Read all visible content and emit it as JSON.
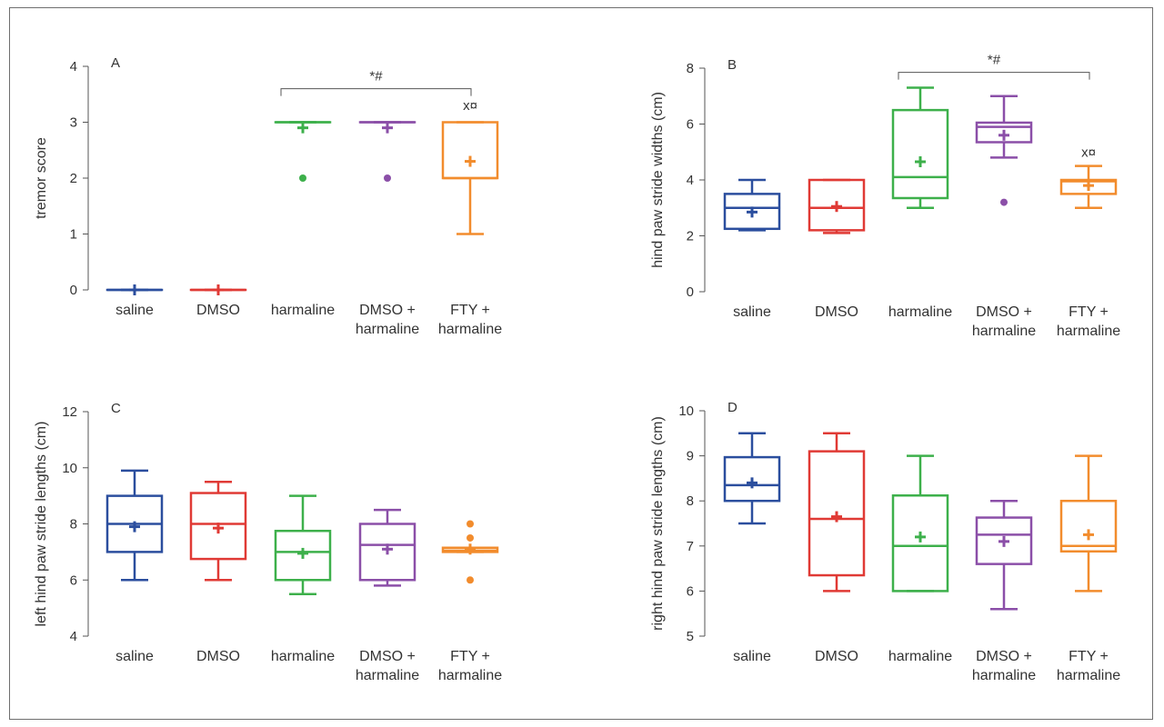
{
  "chart_data": [
    {
      "type": "box",
      "panel_label": "A",
      "ylabel": "tremor score",
      "ylim": [
        0,
        4
      ],
      "yticks": [
        "0",
        "1",
        "2",
        "3",
        "4"
      ],
      "categories": [
        [
          "saline"
        ],
        [
          "DMSO"
        ],
        [
          "harmaline"
        ],
        [
          "DMSO +",
          "harmaline"
        ],
        [
          "FTY +",
          "harmaline"
        ]
      ],
      "colors": [
        "#2b4e9e",
        "#e03a35",
        "#3db04b",
        "#8b4fa8",
        "#f28c2d"
      ],
      "boxes": [
        {
          "whisker_low": 0,
          "q1": 0,
          "median": 0,
          "q3": 0,
          "whisker_high": 0,
          "mean": 0,
          "outliers": []
        },
        {
          "whisker_low": 0,
          "q1": 0,
          "median": 0,
          "q3": 0,
          "whisker_high": 0,
          "mean": 0,
          "outliers": []
        },
        {
          "whisker_low": 3,
          "q1": 3,
          "median": 3,
          "q3": 3,
          "whisker_high": 3,
          "mean": 2.9,
          "outliers": [
            2
          ]
        },
        {
          "whisker_low": 3,
          "q1": 3,
          "median": 3,
          "q3": 3,
          "whisker_high": 3,
          "mean": 2.9,
          "outliers": [
            2
          ]
        },
        {
          "whisker_low": 1,
          "q1": 2,
          "median": 2,
          "q3": 3,
          "whisker_high": 3,
          "mean": 2.3,
          "outliers": []
        }
      ],
      "bracket": {
        "from_index": 2,
        "to_index": 4,
        "y": 3.6,
        "label": "*#"
      },
      "annotations": [
        {
          "index": 4,
          "y": 3.3,
          "text": "x¤"
        }
      ]
    },
    {
      "type": "box",
      "panel_label": "B",
      "ylabel": "hind paw stride widths (cm)",
      "ylim": [
        0,
        8
      ],
      "yticks": [
        "0",
        "2",
        "4",
        "6",
        "8"
      ],
      "categories": [
        [
          "saline"
        ],
        [
          "DMSO"
        ],
        [
          "harmaline"
        ],
        [
          "DMSO +",
          "harmaline"
        ],
        [
          "FTY +",
          "harmaline"
        ]
      ],
      "colors": [
        "#2b4e9e",
        "#e03a35",
        "#3db04b",
        "#8b4fa8",
        "#f28c2d"
      ],
      "boxes": [
        {
          "whisker_low": 2.2,
          "q1": 2.25,
          "median": 3.0,
          "q3": 3.5,
          "whisker_high": 4.0,
          "mean": 2.85,
          "outliers": []
        },
        {
          "whisker_low": 2.1,
          "q1": 2.2,
          "median": 3.0,
          "q3": 4.0,
          "whisker_high": 4.0,
          "mean": 3.05,
          "outliers": []
        },
        {
          "whisker_low": 3.0,
          "q1": 3.35,
          "median": 4.1,
          "q3": 6.5,
          "whisker_high": 7.3,
          "mean": 4.65,
          "outliers": []
        },
        {
          "whisker_low": 4.8,
          "q1": 5.35,
          "median": 5.9,
          "q3": 6.05,
          "whisker_high": 7.0,
          "mean": 5.6,
          "outliers": [
            3.2
          ]
        },
        {
          "whisker_low": 3.0,
          "q1": 3.5,
          "median": 3.95,
          "q3": 4.0,
          "whisker_high": 4.5,
          "mean": 3.8,
          "outliers": []
        }
      ],
      "bracket": {
        "from_index": 2,
        "to_index": 4,
        "y": 7.85,
        "label": "*#"
      },
      "annotations": [
        {
          "index": 4,
          "y": 5.0,
          "text": "x¤"
        }
      ]
    },
    {
      "type": "box",
      "panel_label": "C",
      "ylabel": "left hind paw stride lengths (cm)",
      "ylim": [
        4,
        12
      ],
      "yticks": [
        "4",
        "6",
        "8",
        "10",
        "12"
      ],
      "categories": [
        [
          "saline"
        ],
        [
          "DMSO"
        ],
        [
          "harmaline"
        ],
        [
          "DMSO +",
          "harmaline"
        ],
        [
          "FTY +",
          "harmaline"
        ]
      ],
      "colors": [
        "#2b4e9e",
        "#e03a35",
        "#3db04b",
        "#8b4fa8",
        "#f28c2d"
      ],
      "boxes": [
        {
          "whisker_low": 6.0,
          "q1": 7.0,
          "median": 8.0,
          "q3": 9.0,
          "whisker_high": 9.9,
          "mean": 7.9,
          "outliers": []
        },
        {
          "whisker_low": 6.0,
          "q1": 6.75,
          "median": 8.0,
          "q3": 9.1,
          "whisker_high": 9.5,
          "mean": 7.85,
          "outliers": []
        },
        {
          "whisker_low": 5.5,
          "q1": 6.0,
          "median": 7.0,
          "q3": 7.75,
          "whisker_high": 9.0,
          "mean": 6.95,
          "outliers": []
        },
        {
          "whisker_low": 5.8,
          "q1": 6.0,
          "median": 7.25,
          "q3": 8.0,
          "whisker_high": 8.5,
          "mean": 7.1,
          "outliers": []
        },
        {
          "whisker_low": 7.0,
          "q1": 7.0,
          "median": 7.05,
          "q3": 7.15,
          "whisker_high": 7.15,
          "mean": 7.1,
          "outliers": [
            6.0,
            7.5,
            8.0
          ]
        }
      ]
    },
    {
      "type": "box",
      "panel_label": "D",
      "ylabel": "right hind paw stride lengths (cm)",
      "ylim": [
        5,
        10
      ],
      "yticks": [
        "5",
        "6",
        "7",
        "8",
        "9",
        "10"
      ],
      "categories": [
        [
          "saline"
        ],
        [
          "DMSO"
        ],
        [
          "harmaline"
        ],
        [
          "DMSO +",
          "harmaline"
        ],
        [
          "FTY +",
          "harmaline"
        ]
      ],
      "colors": [
        "#2b4e9e",
        "#e03a35",
        "#3db04b",
        "#8b4fa8",
        "#f28c2d"
      ],
      "boxes": [
        {
          "whisker_low": 7.5,
          "q1": 8.0,
          "median": 8.35,
          "q3": 8.97,
          "whisker_high": 9.5,
          "mean": 8.4,
          "outliers": []
        },
        {
          "whisker_low": 6.0,
          "q1": 6.35,
          "median": 7.6,
          "q3": 9.1,
          "whisker_high": 9.5,
          "mean": 7.65,
          "outliers": []
        },
        {
          "whisker_low": 6.0,
          "q1": 6.0,
          "median": 7.0,
          "q3": 8.12,
          "whisker_high": 9.0,
          "mean": 7.2,
          "outliers": []
        },
        {
          "whisker_low": 5.6,
          "q1": 6.6,
          "median": 7.25,
          "q3": 7.63,
          "whisker_high": 8.0,
          "mean": 7.1,
          "outliers": []
        },
        {
          "whisker_low": 6.0,
          "q1": 6.88,
          "median": 7.0,
          "q3": 8.0,
          "whisker_high": 9.0,
          "mean": 7.25,
          "outliers": []
        }
      ]
    }
  ]
}
